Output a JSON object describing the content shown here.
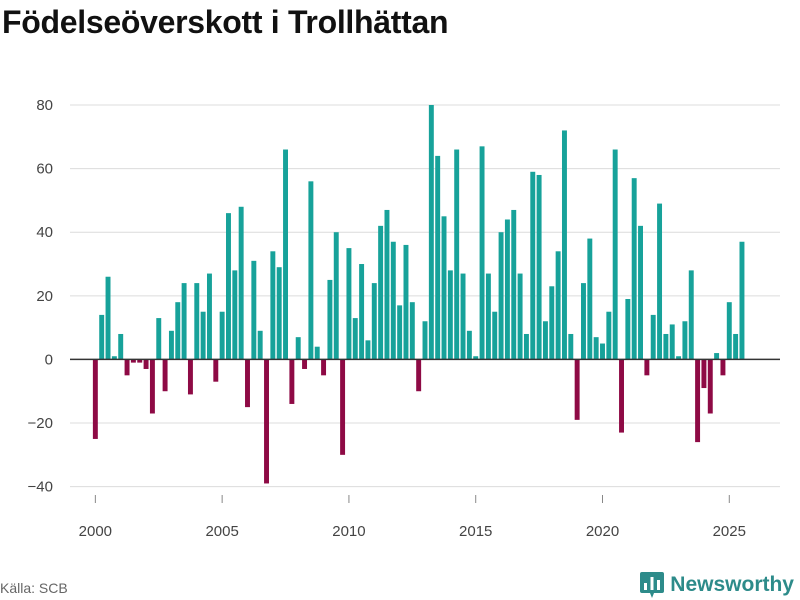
{
  "title": "Födelseöverskott i Trollhättan",
  "source": "Källa: SCB",
  "brand": {
    "name": "Newsworthy",
    "icon": "bar-chart-icon",
    "color": "#2d8b8a"
  },
  "colors": {
    "positive": "#17a29a",
    "negative": "#8e0a45",
    "grid": "#dcdcdc",
    "zero": "#333333"
  },
  "chart_data": {
    "type": "bar",
    "title": "Födelseöverskott i Trollhättan",
    "xlabel": "",
    "ylabel": "",
    "ylim": [
      -42,
      80
    ],
    "xlim": [
      1999,
      2027
    ],
    "yticks": [
      -40,
      -20,
      0,
      20,
      40,
      60,
      80
    ],
    "ytick_labels": [
      "−40",
      "−20",
      "0",
      "20",
      "40",
      "60",
      "80"
    ],
    "xticks": [
      2000,
      2005,
      2010,
      2015,
      2020,
      2025
    ],
    "xtick_labels": [
      "2000",
      "2005",
      "2010",
      "2015",
      "2020",
      "2025"
    ],
    "grid": true,
    "start": 2000.0,
    "step": 0.25,
    "values": [
      -25,
      14,
      26,
      1,
      8,
      -5,
      -1,
      -1,
      -3,
      -17,
      13,
      -10,
      9,
      18,
      24,
      -11,
      24,
      15,
      27,
      -7,
      15,
      46,
      28,
      48,
      -15,
      31,
      9,
      -39,
      34,
      29,
      66,
      -14,
      7,
      -3,
      56,
      4,
      -5,
      25,
      40,
      -30,
      35,
      13,
      30,
      6,
      24,
      42,
      47,
      37,
      17,
      36,
      18,
      -10,
      12,
      80,
      64,
      45,
      28,
      66,
      27,
      9,
      1,
      67,
      27,
      15,
      40,
      44,
      47,
      27,
      8,
      59,
      58,
      12,
      23,
      34,
      72,
      8,
      -19,
      24,
      38,
      7,
      5,
      15,
      66,
      -23,
      19,
      57,
      42,
      -5,
      14,
      49,
      8,
      11,
      1,
      12,
      28,
      -26,
      -9,
      -17,
      2,
      -5,
      18,
      8,
      37
    ]
  }
}
